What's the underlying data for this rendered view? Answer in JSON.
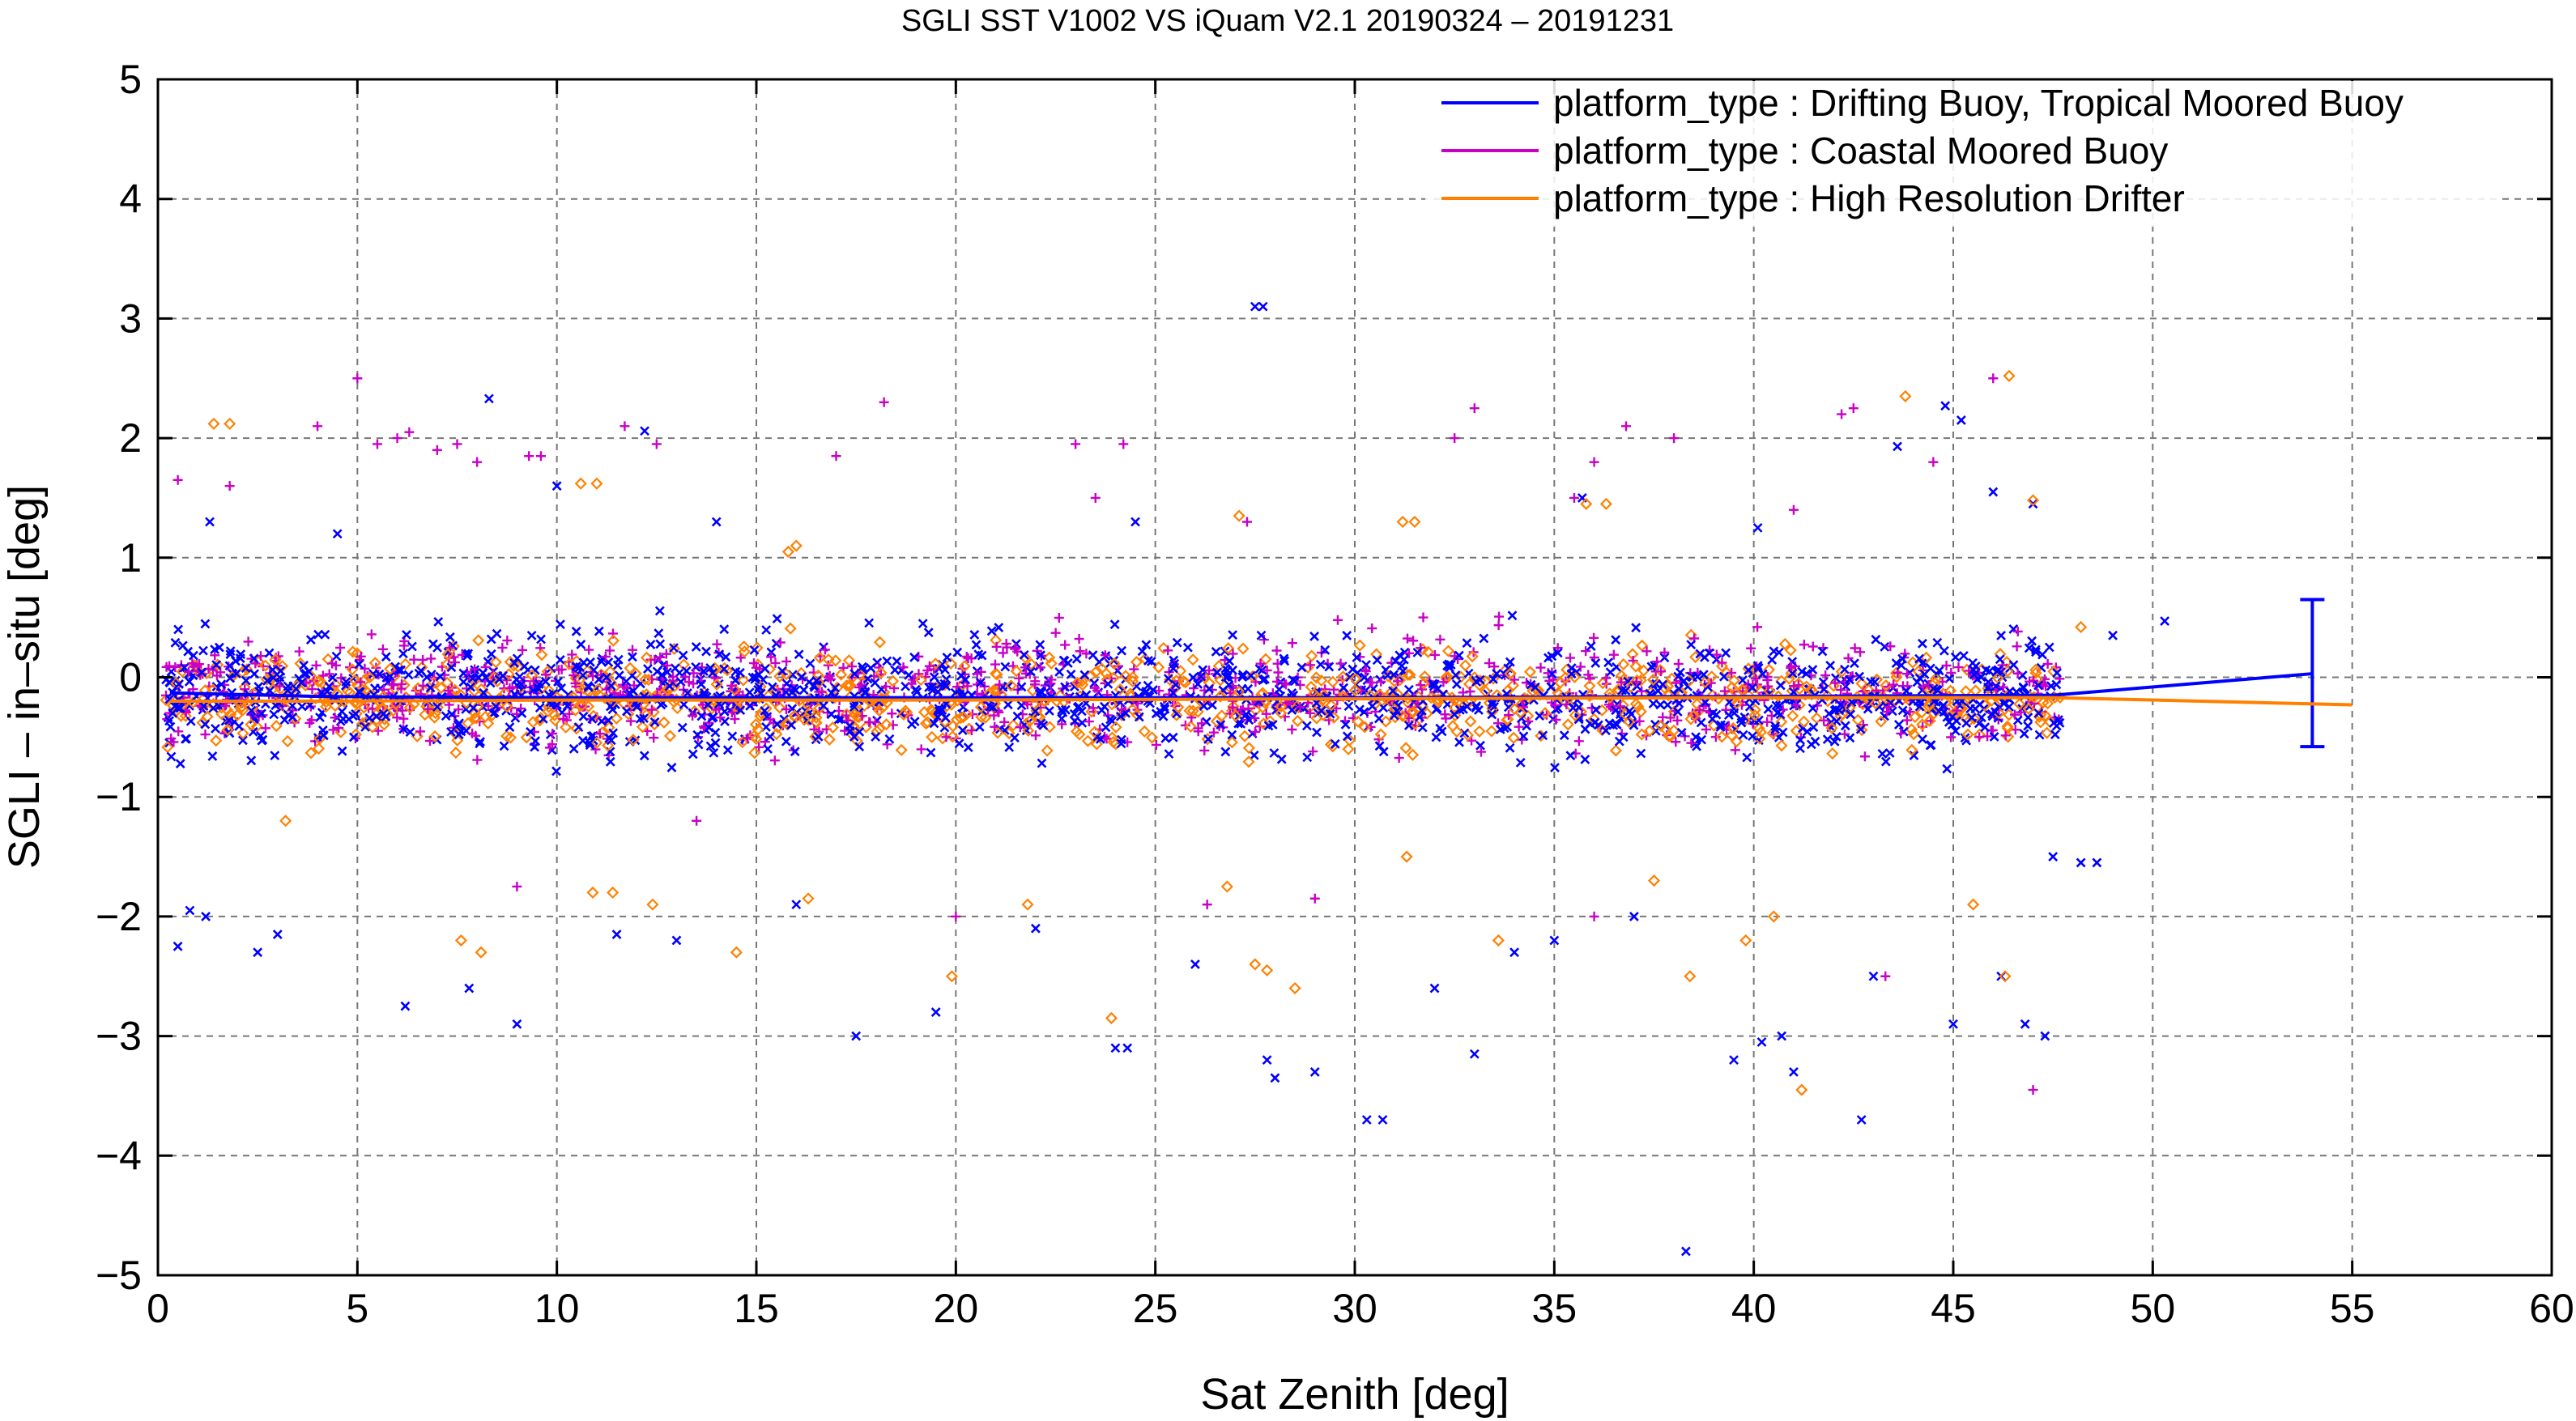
{
  "chart_data": {
    "type": "scatter",
    "title": "SGLI SST V1002 VS iQuam V2.1 20190324 – 20191231",
    "xlabel": "Sat Zenith [deg]",
    "ylabel": "SGLI – in–situ [deg]",
    "xlim": [
      0,
      60
    ],
    "ylim": [
      -5,
      5
    ],
    "x_ticks": [
      0,
      5,
      10,
      15,
      20,
      25,
      30,
      35,
      40,
      45,
      50,
      55,
      60
    ],
    "y_ticks": [
      -5,
      -4,
      -3,
      -2,
      -1,
      0,
      1,
      2,
      3,
      4,
      5
    ],
    "x_tick_labels": [
      "0",
      "5",
      "10",
      "15",
      "20",
      "25",
      "30",
      "35",
      "40",
      "45",
      "50",
      "55",
      "60"
    ],
    "y_tick_labels": [
      "−5",
      "−4",
      "−3",
      "−2",
      "−1",
      "0",
      "1",
      "2",
      "3",
      "4",
      "5"
    ],
    "grid": true,
    "legend_position": "top-right",
    "series": [
      {
        "name": "platform_type : Drifting Buoy, Tropical Moored Buoy",
        "color": "#0000ff",
        "marker": "x",
        "cloud": {
          "x_range": [
            0.2,
            47.7
          ],
          "center": -0.15,
          "spread": 0.55,
          "n_points": 1300
        },
        "outliers": [
          [
            27.5,
            3.1
          ],
          [
            27.7,
            3.1
          ],
          [
            8.3,
            2.33
          ],
          [
            12.2,
            2.06
          ],
          [
            43.6,
            1.93
          ],
          [
            44.8,
            2.27
          ],
          [
            45.2,
            2.15
          ],
          [
            1.3,
            1.3
          ],
          [
            4.5,
            1.2
          ],
          [
            10.0,
            1.6
          ],
          [
            14.0,
            1.3
          ],
          [
            24.5,
            1.3
          ],
          [
            35.7,
            1.5
          ],
          [
            40.1,
            1.25
          ],
          [
            46.0,
            1.55
          ],
          [
            47.0,
            1.45
          ],
          [
            49.0,
            0.35
          ],
          [
            50.3,
            0.47
          ],
          [
            0.5,
            -2.25
          ],
          [
            0.8,
            -1.95
          ],
          [
            1.2,
            -2.0
          ],
          [
            2.5,
            -2.3
          ],
          [
            3.0,
            -2.15
          ],
          [
            6.2,
            -2.75
          ],
          [
            7.8,
            -2.6
          ],
          [
            9.0,
            -2.9
          ],
          [
            11.5,
            -2.15
          ],
          [
            13.0,
            -2.2
          ],
          [
            16.0,
            -1.9
          ],
          [
            17.5,
            -3.0
          ],
          [
            19.5,
            -2.8
          ],
          [
            22.0,
            -2.1
          ],
          [
            24.0,
            -3.1
          ],
          [
            24.3,
            -3.1
          ],
          [
            26.0,
            -2.4
          ],
          [
            27.8,
            -3.2
          ],
          [
            28.0,
            -3.35
          ],
          [
            29.0,
            -3.3
          ],
          [
            30.3,
            -3.7
          ],
          [
            30.7,
            -3.7
          ],
          [
            32.0,
            -2.6
          ],
          [
            33.0,
            -3.15
          ],
          [
            35.0,
            -2.2
          ],
          [
            38.3,
            -4.8
          ],
          [
            39.5,
            -3.2
          ],
          [
            40.2,
            -3.05
          ],
          [
            40.7,
            -3.0
          ],
          [
            41.0,
            -3.3
          ],
          [
            42.7,
            -3.7
          ],
          [
            45.0,
            -2.9
          ],
          [
            46.2,
            -2.5
          ],
          [
            46.8,
            -2.9
          ],
          [
            47.3,
            -3.0
          ],
          [
            47.5,
            -1.5
          ],
          [
            48.2,
            -1.55
          ],
          [
            48.6,
            -1.55
          ],
          [
            43.0,
            -2.5
          ],
          [
            37.0,
            -2.0
          ],
          [
            34.0,
            -2.3
          ]
        ],
        "mean_line": [
          [
            0.3,
            -0.13
          ],
          [
            4,
            -0.16
          ],
          [
            10,
            -0.17
          ],
          [
            20,
            -0.17
          ],
          [
            30,
            -0.17
          ],
          [
            40,
            -0.16
          ],
          [
            47.5,
            -0.15
          ],
          [
            54.0,
            0.03
          ]
        ],
        "error_bar": {
          "x": 54.0,
          "center": 0.03,
          "upper": 0.65,
          "lower": -0.58
        }
      },
      {
        "name": "platform_type : Coastal Moored Buoy",
        "color": "#c800c8",
        "marker": "+",
        "cloud": {
          "x_range": [
            0.2,
            47.7
          ],
          "center": -0.12,
          "spread": 0.5,
          "n_points": 900
        },
        "outliers": [
          [
            0.5,
            1.65
          ],
          [
            1.8,
            1.6
          ],
          [
            4.0,
            2.1
          ],
          [
            5.0,
            2.5
          ],
          [
            5.5,
            1.95
          ],
          [
            6.0,
            2.0
          ],
          [
            6.3,
            2.05
          ],
          [
            7.0,
            1.9
          ],
          [
            7.5,
            1.95
          ],
          [
            8.0,
            1.8
          ],
          [
            9.3,
            1.85
          ],
          [
            9.6,
            1.85
          ],
          [
            11.7,
            2.1
          ],
          [
            12.5,
            1.95
          ],
          [
            17.0,
            1.85
          ],
          [
            18.2,
            2.3
          ],
          [
            23.0,
            1.95
          ],
          [
            23.5,
            1.5
          ],
          [
            24.2,
            1.95
          ],
          [
            27.3,
            1.3
          ],
          [
            32.5,
            2.0
          ],
          [
            33.0,
            2.25
          ],
          [
            35.5,
            1.5
          ],
          [
            36.0,
            1.8
          ],
          [
            36.8,
            2.1
          ],
          [
            38.0,
            2.0
          ],
          [
            41.0,
            1.4
          ],
          [
            42.2,
            2.2
          ],
          [
            42.5,
            2.25
          ],
          [
            44.5,
            1.8
          ],
          [
            46.0,
            2.5
          ],
          [
            13.5,
            -1.2
          ],
          [
            20.0,
            -2.0
          ],
          [
            26.3,
            -1.9
          ],
          [
            29.0,
            -1.85
          ],
          [
            43.3,
            -2.5
          ],
          [
            47.0,
            -3.45
          ],
          [
            36.0,
            -2.0
          ],
          [
            9.0,
            -1.75
          ]
        ]
      },
      {
        "name": "platform_type : High Resolution Drifter",
        "color": "#ff8000",
        "marker": "diamond",
        "cloud": {
          "x_range": [
            0.2,
            47.7
          ],
          "center": -0.18,
          "spread": 0.45,
          "n_points": 900
        },
        "outliers": [
          [
            1.4,
            2.12
          ],
          [
            1.8,
            2.12
          ],
          [
            10.6,
            1.62
          ],
          [
            11.0,
            1.62
          ],
          [
            15.8,
            1.05
          ],
          [
            16.0,
            1.1
          ],
          [
            27.1,
            1.35
          ],
          [
            31.2,
            1.3
          ],
          [
            31.5,
            1.3
          ],
          [
            35.8,
            1.45
          ],
          [
            36.3,
            1.45
          ],
          [
            43.8,
            2.35
          ],
          [
            46.4,
            2.52
          ],
          [
            47.0,
            1.48
          ],
          [
            48.2,
            0.42
          ],
          [
            3.2,
            -1.2
          ],
          [
            7.6,
            -2.2
          ],
          [
            8.1,
            -2.3
          ],
          [
            10.9,
            -1.8
          ],
          [
            11.4,
            -1.8
          ],
          [
            12.4,
            -1.9
          ],
          [
            14.5,
            -2.3
          ],
          [
            16.3,
            -1.85
          ],
          [
            19.9,
            -2.5
          ],
          [
            23.9,
            -2.85
          ],
          [
            26.8,
            -1.75
          ],
          [
            27.5,
            -2.4
          ],
          [
            27.8,
            -2.45
          ],
          [
            28.5,
            -2.6
          ],
          [
            31.3,
            -1.5
          ],
          [
            33.6,
            -2.2
          ],
          [
            37.5,
            -1.7
          ],
          [
            38.4,
            -2.5
          ],
          [
            39.8,
            -2.2
          ],
          [
            40.5,
            -2.0
          ],
          [
            41.2,
            -3.45
          ],
          [
            45.5,
            -1.9
          ],
          [
            46.3,
            -2.5
          ],
          [
            21.8,
            -1.9
          ]
        ],
        "mean_line": [
          [
            0.3,
            -0.2
          ],
          [
            4,
            -0.2
          ],
          [
            10,
            -0.19
          ],
          [
            20,
            -0.19
          ],
          [
            30,
            -0.18
          ],
          [
            40,
            -0.17
          ],
          [
            47.5,
            -0.17
          ],
          [
            55.0,
            -0.23
          ]
        ]
      }
    ]
  }
}
